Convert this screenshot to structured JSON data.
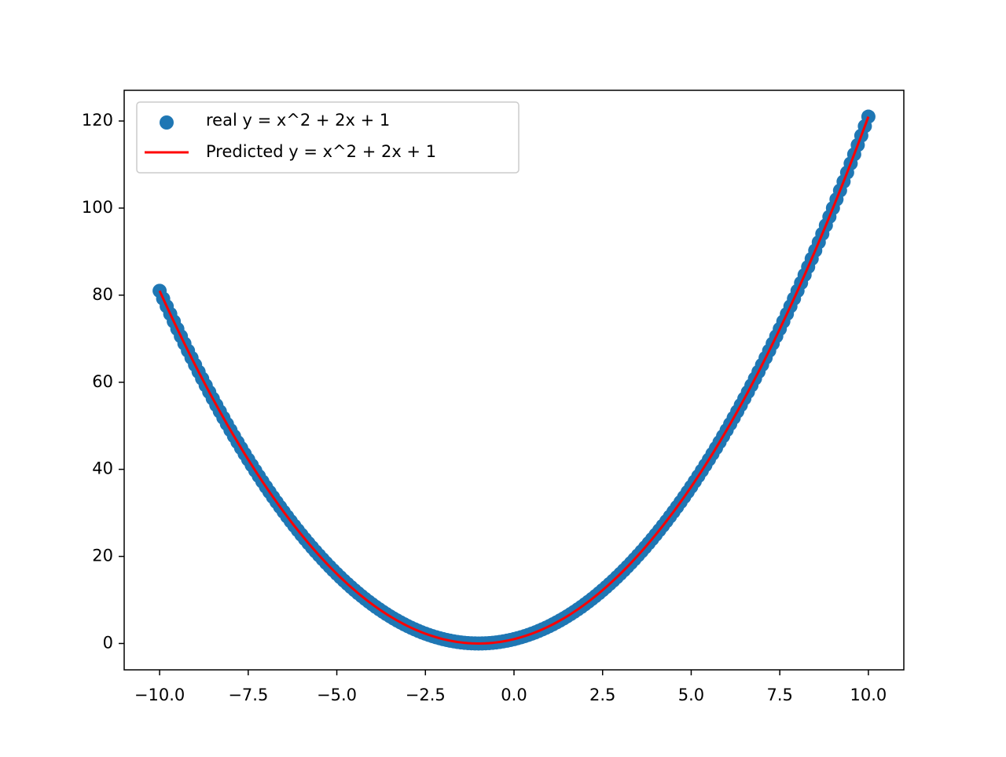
{
  "chart_data": {
    "type": "scatter",
    "x": [
      -10,
      -9.9,
      -9.8,
      -9.7,
      -9.6,
      -9.5,
      -9.4,
      -9.3,
      -9.2,
      -9.1,
      -9,
      -8.9,
      -8.8,
      -8.7,
      -8.6,
      -8.5,
      -8.4,
      -8.3,
      -8.2,
      -8.1,
      -8,
      -7.9,
      -7.8,
      -7.7,
      -7.6,
      -7.5,
      -7.4,
      -7.3,
      -7.2,
      -7.1,
      -7,
      -6.9,
      -6.8,
      -6.7,
      -6.6,
      -6.5,
      -6.4,
      -6.3,
      -6.2,
      -6.1,
      -6,
      -5.9,
      -5.8,
      -5.7,
      -5.6,
      -5.5,
      -5.4,
      -5.3,
      -5.2,
      -5.1,
      -5,
      -4.9,
      -4.8,
      -4.7,
      -4.6,
      -4.5,
      -4.4,
      -4.3,
      -4.2,
      -4.1,
      -4,
      -3.9,
      -3.8,
      -3.7,
      -3.6,
      -3.5,
      -3.4,
      -3.3,
      -3.2,
      -3.1,
      -3,
      -2.9,
      -2.8,
      -2.7,
      -2.6,
      -2.5,
      -2.4,
      -2.3,
      -2.2,
      -2.1,
      -2,
      -1.9,
      -1.8,
      -1.7,
      -1.6,
      -1.5,
      -1.4,
      -1.3,
      -1.2,
      -1.1,
      -1,
      -0.9,
      -0.8,
      -0.7,
      -0.6,
      -0.5,
      -0.4,
      -0.3,
      -0.2,
      -0.1,
      0,
      0.1,
      0.2,
      0.3,
      0.4,
      0.5,
      0.6,
      0.7,
      0.8,
      0.9,
      1,
      1.1,
      1.2,
      1.3,
      1.4,
      1.5,
      1.6,
      1.7,
      1.8,
      1.9,
      2,
      2.1,
      2.2,
      2.3,
      2.4,
      2.5,
      2.6,
      2.7,
      2.8,
      2.9,
      3,
      3.1,
      3.2,
      3.3,
      3.4,
      3.5,
      3.6,
      3.7,
      3.8,
      3.9,
      4,
      4.1,
      4.2,
      4.3,
      4.4,
      4.5,
      4.6,
      4.7,
      4.8,
      4.9,
      5,
      5.1,
      5.2,
      5.3,
      5.4,
      5.5,
      5.6,
      5.7,
      5.8,
      5.9,
      6,
      6.1,
      6.2,
      6.3,
      6.4,
      6.5,
      6.6,
      6.7,
      6.8,
      6.9,
      7,
      7.1,
      7.2,
      7.3,
      7.4,
      7.5,
      7.6,
      7.7,
      7.8,
      7.9,
      8,
      8.1,
      8.2,
      8.3,
      8.4,
      8.5,
      8.6,
      8.7,
      8.8,
      8.9,
      9,
      9.1,
      9.2,
      9.3,
      9.4,
      9.5,
      9.6,
      9.7,
      9.8,
      9.9,
      10
    ],
    "series": [
      {
        "name": "real y = x^2 + 2x + 1",
        "mark": "scatter",
        "color": "#1f77b4",
        "values": [
          81,
          79.21,
          77.44,
          75.69,
          73.96,
          72.25,
          70.56,
          68.89,
          67.24,
          65.61,
          64,
          62.41,
          60.84,
          59.29,
          57.76,
          56.25,
          54.76,
          53.29,
          51.84,
          50.41,
          49,
          47.61,
          46.24,
          44.89,
          43.56,
          42.25,
          40.96,
          39.69,
          38.44,
          37.21,
          36,
          34.81,
          33.64,
          32.49,
          31.36,
          30.25,
          29.16,
          28.09,
          27.04,
          26.01,
          25,
          24.01,
          23.04,
          22.09,
          21.16,
          20.25,
          19.36,
          18.49,
          17.64,
          16.81,
          16,
          15.21,
          14.44,
          13.69,
          12.96,
          12.25,
          11.56,
          10.89,
          10.24,
          9.61,
          9,
          8.41,
          7.84,
          7.29,
          6.76,
          6.25,
          5.76,
          5.29,
          4.84,
          4.41,
          4,
          3.61,
          3.24,
          2.89,
          2.56,
          2.25,
          1.96,
          1.69,
          1.44,
          1.21,
          1,
          0.81,
          0.64,
          0.49,
          0.36,
          0.25,
          0.16,
          0.09,
          0.04,
          0.01,
          0,
          0.01,
          0.04,
          0.09,
          0.16,
          0.25,
          0.36,
          0.49,
          0.64,
          0.81,
          1,
          1.21,
          1.44,
          1.69,
          1.96,
          2.25,
          2.56,
          2.89,
          3.24,
          3.61,
          4,
          4.41,
          4.84,
          5.29,
          5.76,
          6.25,
          6.76,
          7.29,
          7.84,
          8.41,
          9,
          9.61,
          10.24,
          10.89,
          11.56,
          12.25,
          12.96,
          13.69,
          14.44,
          15.21,
          16,
          16.81,
          17.64,
          18.49,
          19.36,
          20.25,
          21.16,
          22.09,
          23.04,
          24.01,
          25,
          26.01,
          27.04,
          28.09,
          29.16,
          30.25,
          31.36,
          32.49,
          33.64,
          34.81,
          36,
          37.21,
          38.44,
          39.69,
          40.96,
          42.25,
          43.56,
          44.89,
          46.24,
          47.61,
          49,
          50.41,
          51.84,
          53.29,
          54.76,
          56.25,
          57.76,
          59.29,
          60.84,
          62.41,
          64,
          65.61,
          67.24,
          68.89,
          70.56,
          72.25,
          73.96,
          75.69,
          77.44,
          79.21,
          81,
          82.81,
          84.64,
          86.49,
          88.36,
          90.25,
          92.16,
          94.09,
          96.04,
          98.01,
          100,
          102.01,
          104.04,
          106.09,
          108.16,
          110.25,
          112.36,
          114.49,
          116.64,
          118.81,
          121
        ]
      },
      {
        "name": "Predicted y = x^2 + 2x + 1",
        "mark": "line",
        "color": "#ff0000",
        "values": [
          81,
          79.21,
          77.44,
          75.69,
          73.96,
          72.25,
          70.56,
          68.89,
          67.24,
          65.61,
          64,
          62.41,
          60.84,
          59.29,
          57.76,
          56.25,
          54.76,
          53.29,
          51.84,
          50.41,
          49,
          47.61,
          46.24,
          44.89,
          43.56,
          42.25,
          40.96,
          39.69,
          38.44,
          37.21,
          36,
          34.81,
          33.64,
          32.49,
          31.36,
          30.25,
          29.16,
          28.09,
          27.04,
          26.01,
          25,
          24.01,
          23.04,
          22.09,
          21.16,
          20.25,
          19.36,
          18.49,
          17.64,
          16.81,
          16,
          15.21,
          14.44,
          13.69,
          12.96,
          12.25,
          11.56,
          10.89,
          10.24,
          9.61,
          9,
          8.41,
          7.84,
          7.29,
          6.76,
          6.25,
          5.76,
          5.29,
          4.84,
          4.41,
          4,
          3.61,
          3.24,
          2.89,
          2.56,
          2.25,
          1.96,
          1.69,
          1.44,
          1.21,
          1,
          0.81,
          0.64,
          0.49,
          0.36,
          0.25,
          0.16,
          0.09,
          0.04,
          0.01,
          0,
          0.01,
          0.04,
          0.09,
          0.16,
          0.25,
          0.36,
          0.49,
          0.64,
          0.81,
          1,
          1.21,
          1.44,
          1.69,
          1.96,
          2.25,
          2.56,
          2.89,
          3.24,
          3.61,
          4,
          4.41,
          4.84,
          5.29,
          5.76,
          6.25,
          6.76,
          7.29,
          7.84,
          8.41,
          9,
          9.61,
          10.24,
          10.89,
          11.56,
          12.25,
          12.96,
          13.69,
          14.44,
          15.21,
          16,
          16.81,
          17.64,
          18.49,
          19.36,
          20.25,
          21.16,
          22.09,
          23.04,
          24.01,
          25,
          26.01,
          27.04,
          28.09,
          29.16,
          30.25,
          31.36,
          32.49,
          33.64,
          34.81,
          36,
          37.21,
          38.44,
          39.69,
          40.96,
          42.25,
          43.56,
          44.89,
          46.24,
          47.61,
          49,
          50.41,
          51.84,
          53.29,
          54.76,
          56.25,
          57.76,
          59.29,
          60.84,
          62.41,
          64,
          65.61,
          67.24,
          68.89,
          70.56,
          72.25,
          73.96,
          75.69,
          77.44,
          79.21,
          81,
          82.81,
          84.64,
          86.49,
          88.36,
          90.25,
          92.16,
          94.09,
          96.04,
          98.01,
          100,
          102.01,
          104.04,
          106.09,
          108.16,
          110.25,
          112.36,
          114.49,
          116.64,
          118.81,
          121
        ]
      }
    ],
    "xlim": [
      -11,
      11
    ],
    "ylim": [
      -6.05,
      127.05
    ],
    "xticks": [
      {
        "value": -10,
        "label": "−10.0"
      },
      {
        "value": -7.5,
        "label": "−7.5"
      },
      {
        "value": -5,
        "label": "−5.0"
      },
      {
        "value": -2.5,
        "label": "−2.5"
      },
      {
        "value": 0,
        "label": "0.0"
      },
      {
        "value": 2.5,
        "label": "2.5"
      },
      {
        "value": 5,
        "label": "5.0"
      },
      {
        "value": 7.5,
        "label": "7.5"
      },
      {
        "value": 10,
        "label": "10.0"
      }
    ],
    "yticks": [
      0,
      20,
      40,
      60,
      80,
      100,
      120
    ],
    "grid": false,
    "legend": "upper left"
  }
}
